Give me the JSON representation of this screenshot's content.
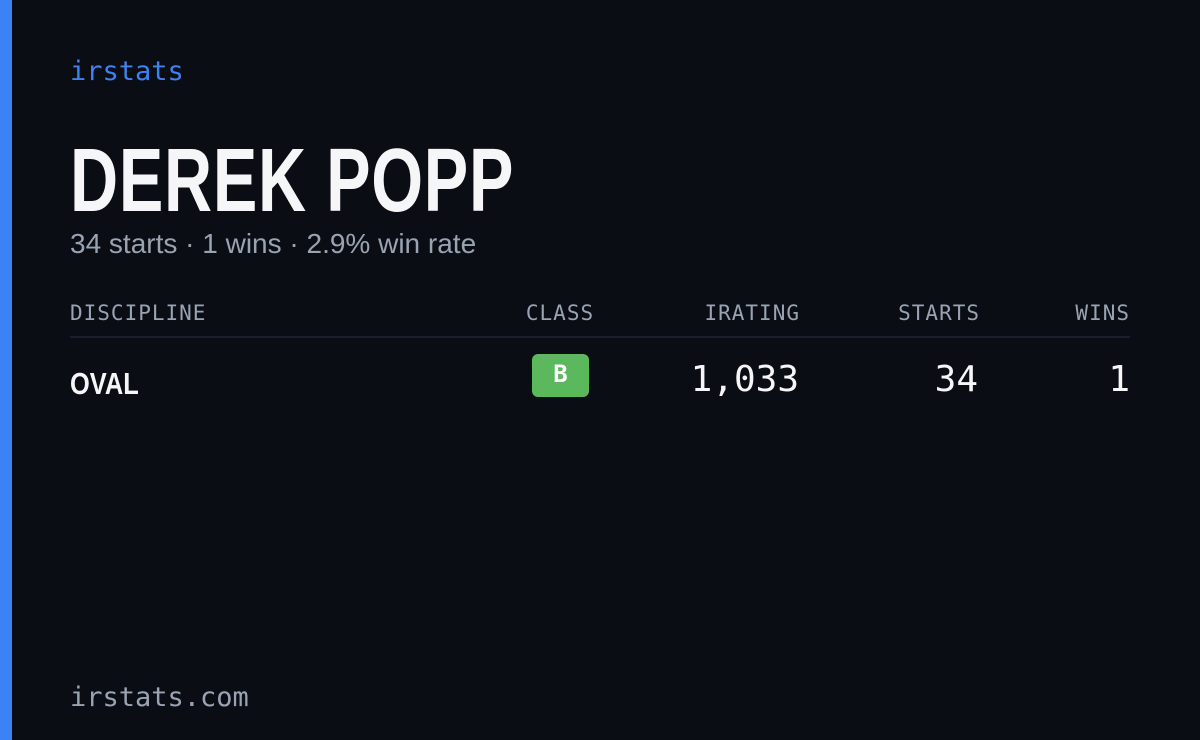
{
  "brand": "irstats",
  "driver": {
    "name": "DEREK POPP",
    "summary": "34 starts · 1 wins · 2.9% win rate"
  },
  "table": {
    "headers": [
      "DISCIPLINE",
      "CLASS",
      "IRATING",
      "STARTS",
      "WINS"
    ],
    "rows": [
      [
        "OVAL",
        "B",
        "1,033",
        "34",
        "1"
      ]
    ]
  },
  "footer": "irstats.com"
}
